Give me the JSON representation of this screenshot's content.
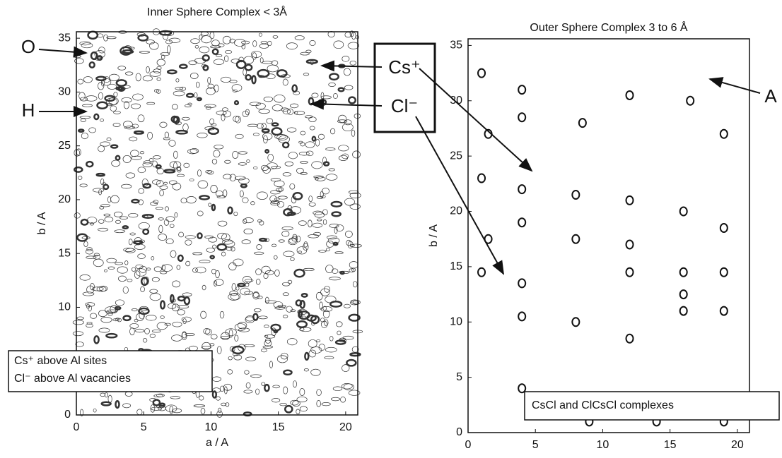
{
  "chart_data": [
    {
      "type": "contour",
      "title": "Inner Sphere Complex < 3Å",
      "xlabel": "a / A",
      "ylabel": "b / A",
      "xlim": [
        0,
        20.9
      ],
      "ylim": [
        0,
        35.6
      ],
      "xticks": [
        0,
        5,
        10,
        15,
        20
      ],
      "yticks": [
        0,
        5,
        10,
        15,
        20,
        25,
        30,
        35
      ],
      "annotations": [
        "O",
        "H"
      ],
      "legend_lines": [
        "Cs⁺ above Al sites",
        "Cl⁻ above Al vacancies"
      ]
    },
    {
      "type": "contour",
      "title": "Outer Sphere Complex 3 to 6 Å",
      "xlabel": "a / A",
      "ylabel": "b / A",
      "xlim": [
        0,
        20.9
      ],
      "ylim": [
        0,
        35.6
      ],
      "xticks": [
        0,
        5,
        10,
        15,
        20
      ],
      "yticks": [
        0,
        5,
        10,
        15,
        20,
        25,
        30,
        35
      ],
      "annotations": [
        "A"
      ],
      "legend_lines": [
        "CsCl and ClCsCl complexes"
      ],
      "peaks": {
        "x": [
          1,
          4,
          1.5,
          4,
          8.5,
          12,
          16.5,
          19,
          1,
          4,
          8,
          12,
          16,
          19,
          1.5,
          4,
          8,
          12,
          16,
          19,
          1,
          4,
          12,
          16,
          19,
          4,
          8,
          12,
          16,
          4,
          9,
          14,
          19
        ],
        "y": [
          32.5,
          31,
          27,
          28.5,
          28,
          30.5,
          30,
          27,
          23,
          22,
          21.5,
          21,
          20,
          18.5,
          17.5,
          19,
          17.5,
          17,
          14.5,
          14.5,
          14.5,
          13.5,
          14.5,
          12.5,
          11,
          10.5,
          10,
          8.5,
          11,
          4,
          1,
          1,
          1
        ]
      }
    }
  ],
  "callout": [
    "Cs⁺",
    "Cl⁻"
  ]
}
